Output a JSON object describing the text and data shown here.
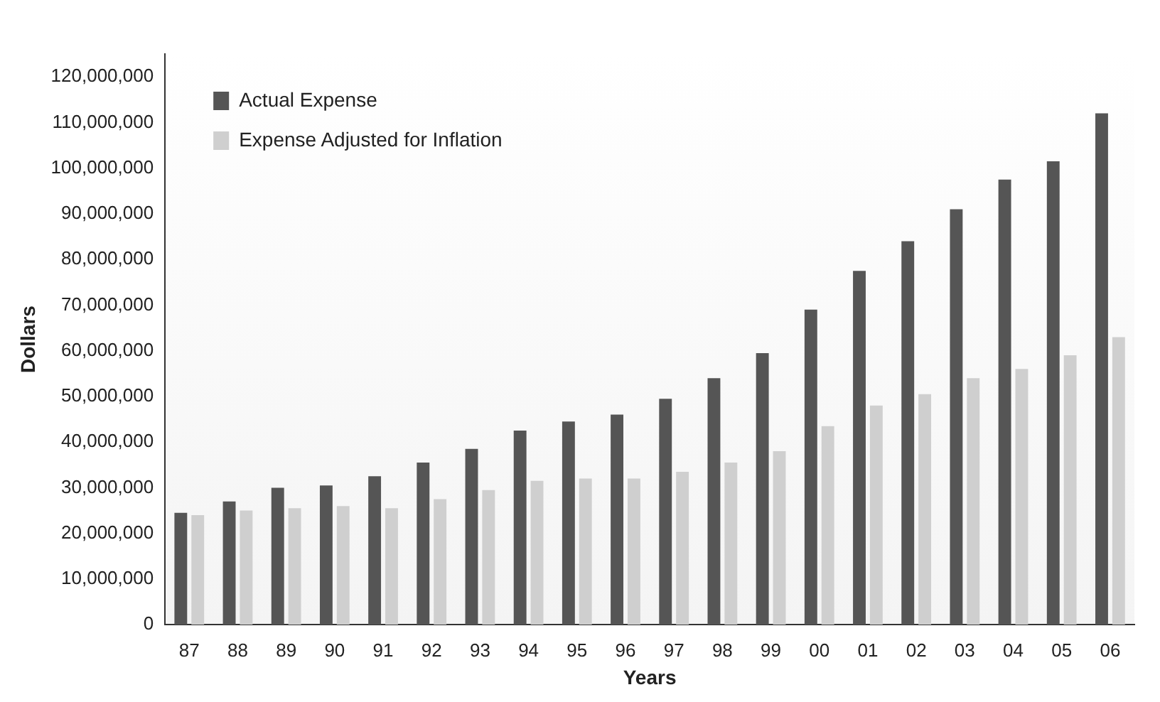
{
  "chart_data": {
    "type": "bar",
    "xlabel": "Years",
    "ylabel": "Dollars",
    "categories": [
      "87",
      "88",
      "89",
      "90",
      "91",
      "92",
      "93",
      "94",
      "95",
      "96",
      "97",
      "98",
      "99",
      "00",
      "01",
      "02",
      "03",
      "04",
      "05",
      "06"
    ],
    "series": [
      {
        "name": "Actual Expense",
        "color": "#555555",
        "values": [
          24500000,
          27000000,
          30000000,
          30500000,
          32500000,
          35500000,
          38500000,
          42500000,
          44500000,
          46000000,
          49500000,
          54000000,
          59500000,
          69000000,
          77500000,
          84000000,
          91000000,
          97500000,
          101500000,
          112000000
        ]
      },
      {
        "name": "Expense Adjusted for Inflation",
        "color": "#cfcfcf",
        "values": [
          24000000,
          25000000,
          25500000,
          26000000,
          25500000,
          27500000,
          29500000,
          31500000,
          32000000,
          32000000,
          33500000,
          35500000,
          38000000,
          43500000,
          48000000,
          50500000,
          54000000,
          56000000,
          59000000,
          63000000
        ]
      }
    ],
    "ylim": [
      0,
      125000000
    ],
    "yticks": [
      {
        "value": 0,
        "label": "0"
      },
      {
        "value": 10000000,
        "label": "10,000,000"
      },
      {
        "value": 20000000,
        "label": "20,000,000"
      },
      {
        "value": 30000000,
        "label": "30,000,000"
      },
      {
        "value": 40000000,
        "label": "40,000,000"
      },
      {
        "value": 50000000,
        "label": "50,000,000"
      },
      {
        "value": 60000000,
        "label": "60,000,000"
      },
      {
        "value": 70000000,
        "label": "70,000,000"
      },
      {
        "value": 80000000,
        "label": "80,000,000"
      },
      {
        "value": 90000000,
        "label": "90,000,000"
      },
      {
        "value": 100000000,
        "label": "100,000,000"
      },
      {
        "value": 110000000,
        "label": "110,000,000"
      },
      {
        "value": 120000000,
        "label": "120,000,000"
      }
    ],
    "grid": false,
    "legend": "top left"
  }
}
